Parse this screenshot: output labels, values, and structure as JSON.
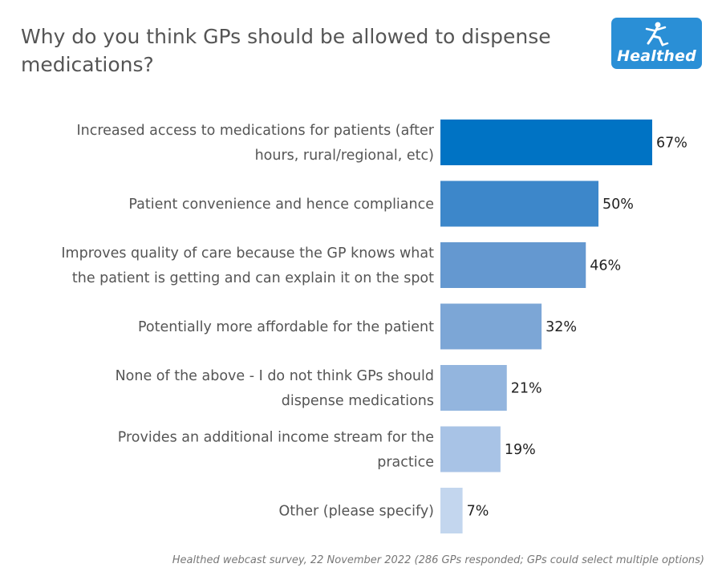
{
  "title": "Why do you think GPs should be allowed to dispense medications?",
  "logo": {
    "text": "Healthed",
    "icon": "runner-figure-icon",
    "color": "#2a8fd6"
  },
  "footnote": "Healthed webcast survey, 22 November 2022 (286 GPs responded; GPs could select multiple options)",
  "chart_data": {
    "type": "bar",
    "orientation": "horizontal",
    "title": "Why do you think GPs should be allowed to dispense medications?",
    "xlabel": "",
    "ylabel": "",
    "xlim": [
      0,
      100
    ],
    "grid": false,
    "unit": "%",
    "categories": [
      [
        "Increased access to medications for patients (after",
        "hours, rural/regional, etc)"
      ],
      [
        "Patient convenience and hence compliance"
      ],
      [
        "Improves quality of care because the GP knows what",
        "the patient is getting and can explain it on the spot"
      ],
      [
        "Potentially more affordable for the patient"
      ],
      [
        "None of the above - I do not think GPs should",
        "dispense medications"
      ],
      [
        "Provides an additional income stream for the",
        "practice"
      ],
      [
        "Other (please specify)"
      ]
    ],
    "values": [
      67,
      50,
      46,
      32,
      21,
      19,
      7
    ],
    "value_labels": [
      "67%",
      "50%",
      "46%",
      "32%",
      "21%",
      "19%",
      "7%"
    ],
    "colors": [
      "#0073c4",
      "#3d87ca",
      "#6498d0",
      "#7ca6d6",
      "#93b5de",
      "#a8c3e6",
      "#c3d6ee"
    ]
  }
}
